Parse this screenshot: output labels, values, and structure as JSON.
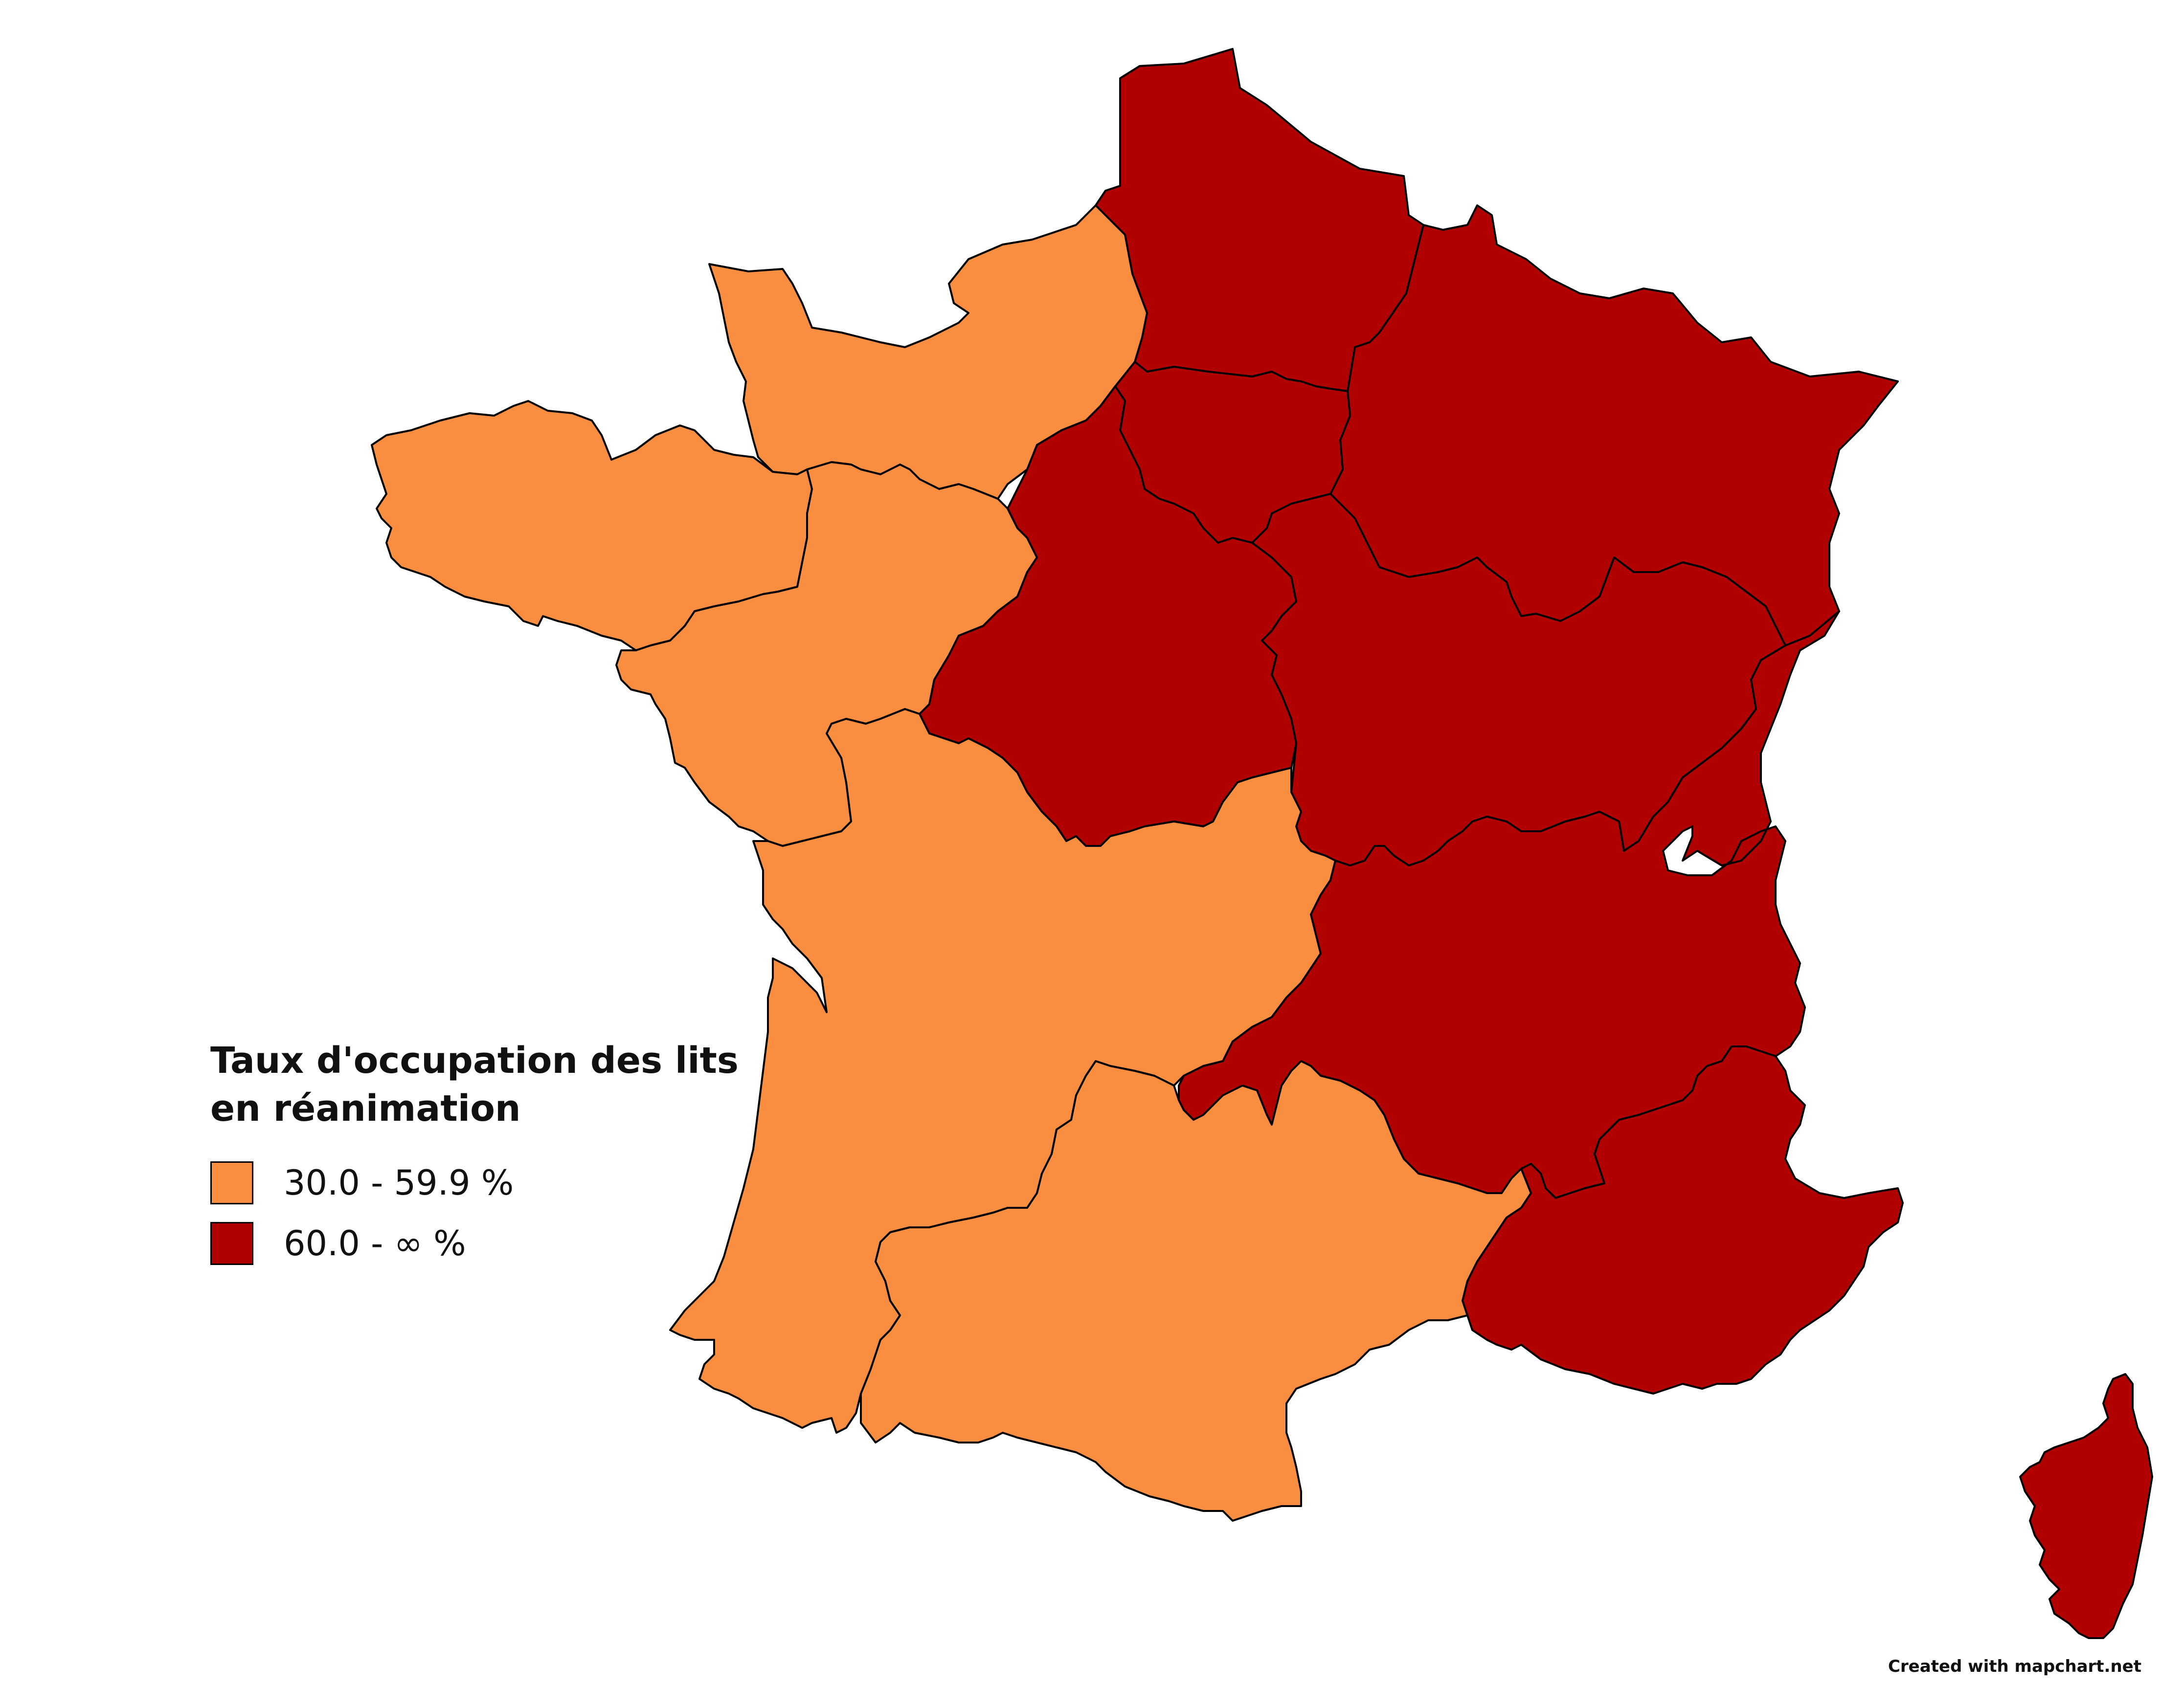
{
  "map": {
    "title_line1": "Taux d'occupation des lits",
    "title_line2": "en réanimation",
    "legend": [
      {
        "label": "30.0 - 59.9 %",
        "color": "#fa8e40"
      },
      {
        "label": "60.0 - ∞ %",
        "color": "#b00000"
      }
    ],
    "credit": "Created with mapchart.net",
    "colors": {
      "low": "#fa8e40",
      "high": "#b00000",
      "border": "#000000",
      "background": "#ffffff"
    },
    "regions": [
      {
        "name": "Normandie",
        "category": "low"
      },
      {
        "name": "Bretagne",
        "category": "low"
      },
      {
        "name": "Pays de la Loire",
        "category": "low"
      },
      {
        "name": "Nouvelle-Aquitaine",
        "category": "low"
      },
      {
        "name": "Occitanie",
        "category": "low"
      },
      {
        "name": "Hauts-de-France",
        "category": "high"
      },
      {
        "name": "Île-de-France",
        "category": "high"
      },
      {
        "name": "Grand Est",
        "category": "high"
      },
      {
        "name": "Centre-Val de Loire",
        "category": "high"
      },
      {
        "name": "Bourgogne-Franche-Comté",
        "category": "high"
      },
      {
        "name": "Auvergne-Rhône-Alpes",
        "category": "high"
      },
      {
        "name": "Provence-Alpes-Côte d'Azur",
        "category": "high"
      },
      {
        "name": "Corse",
        "category": "high"
      }
    ]
  }
}
